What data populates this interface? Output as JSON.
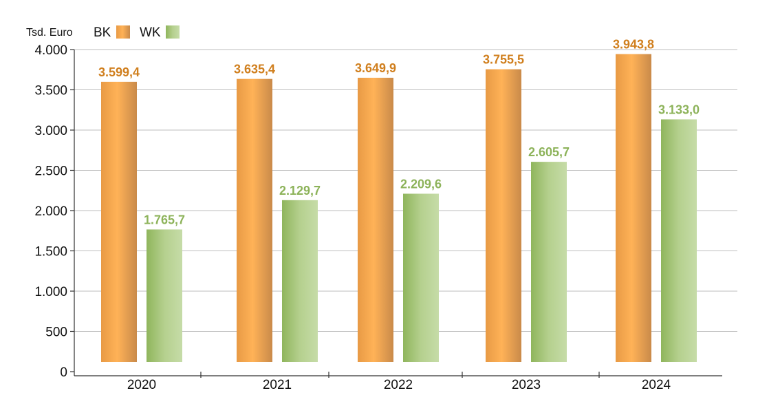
{
  "chart_data": {
    "type": "bar",
    "unit_label": "Tsd. Euro",
    "categories": [
      "2020",
      "2021",
      "2022",
      "2023",
      "2024"
    ],
    "series": [
      {
        "name": "BK",
        "values": [
          3599.4,
          3635.4,
          3649.9,
          3755.5,
          3943.8
        ],
        "labels": [
          "3.599,4",
          "3.635,4",
          "3.649,9",
          "3.755,5",
          "3.943,8"
        ],
        "color": "#d98c2f"
      },
      {
        "name": "WK",
        "values": [
          1765.7,
          2129.7,
          2209.6,
          2605.7,
          3133.0
        ],
        "labels": [
          "1.765,7",
          "2.129,7",
          "2.209,6",
          "2.605,7",
          "3.133,0"
        ],
        "color": "#96b85e"
      }
    ],
    "ylim": [
      0,
      4000
    ],
    "yticks": [
      0,
      500,
      1000,
      1500,
      2000,
      2500,
      3000,
      3500,
      4000
    ],
    "ytick_labels": [
      "0",
      "500",
      "1.000",
      "1.500",
      "2.000",
      "2.500",
      "3.000",
      "3.500",
      "4.000"
    ],
    "grid": true,
    "legend_position": "top-left"
  }
}
